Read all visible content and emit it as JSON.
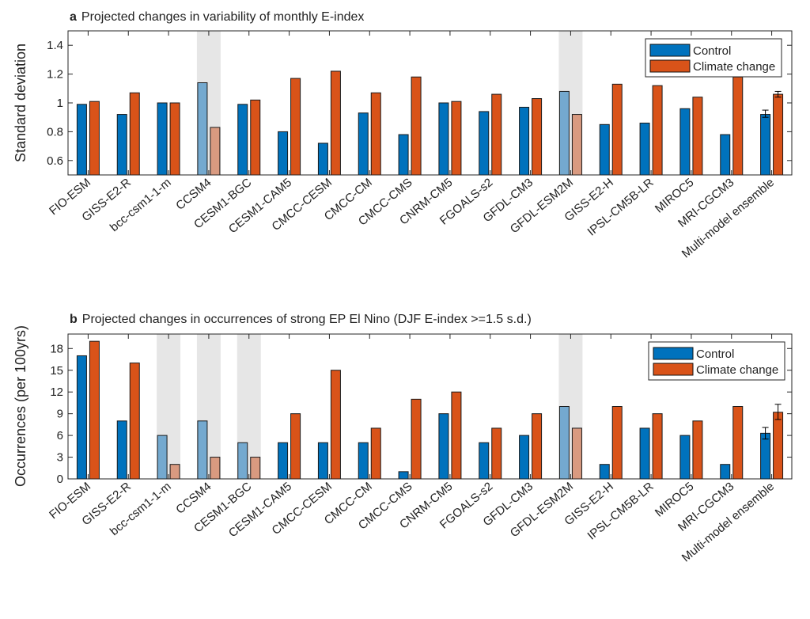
{
  "chart_data": [
    {
      "type": "bar",
      "panel_letter": "a",
      "title": "Projected changes in variability of monthly E-index",
      "ylabel": "Standard deviation",
      "xlabel": "",
      "ylim": [
        0.5,
        1.5
      ],
      "yticks": [
        0.6,
        0.8,
        1,
        1.2,
        1.4
      ],
      "ytick_labels": [
        "0.6",
        "0.8",
        "1",
        "1.2",
        "1.4"
      ],
      "categories": [
        "FIO-ESM",
        "GISS-E2-R",
        "bcc-csm1-1-m",
        "CCSM4",
        "CESM1-BGC",
        "CESM1-CAM5",
        "CMCC-CESM",
        "CMCC-CM",
        "CMCC-CMS",
        "CNRM-CM5",
        "FGOALS-s2",
        "GFDL-CM3",
        "GFDL-ESM2M",
        "GISS-E2-H",
        "IPSL-CM5B-LR",
        "MIROC5",
        "MRI-CGCM3",
        "Multi-model ensemble"
      ],
      "series": [
        {
          "name": "Control",
          "color": "#0072BD",
          "values": [
            0.99,
            0.92,
            1.0,
            1.14,
            0.99,
            0.8,
            0.72,
            0.93,
            0.78,
            1.0,
            0.94,
            0.97,
            1.08,
            0.85,
            0.86,
            0.96,
            0.78,
            0.92
          ]
        },
        {
          "name": "Climate change",
          "color": "#D95319",
          "values": [
            1.01,
            1.07,
            1.0,
            0.83,
            1.02,
            1.17,
            1.22,
            1.07,
            1.18,
            1.01,
            1.06,
            1.03,
            0.92,
            1.13,
            1.12,
            1.04,
            1.18,
            1.06
          ]
        }
      ],
      "highlighted_models": [
        "CCSM4",
        "GFDL-ESM2M"
      ],
      "error_bars": {
        "category": "Multi-model ensemble",
        "Control": [
          0.9,
          0.95
        ],
        "Climate change": [
          1.04,
          1.08
        ]
      },
      "legend_position": "top-right",
      "grid": false
    },
    {
      "type": "bar",
      "panel_letter": "b",
      "title": "Projected changes in occurrences of strong EP El Nino (DJF E-index >=1.5 s.d.)",
      "ylabel": "Occurrences (per 100yrs)",
      "xlabel": "",
      "ylim": [
        0,
        20
      ],
      "yticks": [
        0,
        3,
        6,
        9,
        12,
        15,
        18
      ],
      "ytick_labels": [
        "0",
        "3",
        "6",
        "9",
        "12",
        "15",
        "18"
      ],
      "categories": [
        "FIO-ESM",
        "GISS-E2-R",
        "bcc-csm1-1-m",
        "CCSM4",
        "CESM1-BGC",
        "CESM1-CAM5",
        "CMCC-CESM",
        "CMCC-CM",
        "CMCC-CMS",
        "CNRM-CM5",
        "FGOALS-s2",
        "GFDL-CM3",
        "GFDL-ESM2M",
        "GISS-E2-H",
        "IPSL-CM5B-LR",
        "MIROC5",
        "MRI-CGCM3",
        "Multi-model ensemble"
      ],
      "series": [
        {
          "name": "Control",
          "color": "#0072BD",
          "values": [
            17,
            8,
            6,
            8,
            5,
            5,
            5,
            5,
            1,
            9,
            5,
            6,
            10,
            2,
            7,
            6,
            2,
            6.3
          ]
        },
        {
          "name": "Climate change",
          "color": "#D95319",
          "values": [
            19,
            16,
            2,
            3,
            3,
            9,
            15,
            7,
            11,
            12,
            7,
            9,
            7,
            10,
            9,
            8,
            10,
            9.2
          ]
        }
      ],
      "highlighted_models": [
        "bcc-csm1-1-m",
        "CCSM4",
        "CESM1-BGC",
        "GFDL-ESM2M"
      ],
      "error_bars": {
        "category": "Multi-model ensemble",
        "Control": [
          5.5,
          7.1
        ],
        "Climate change": [
          8.2,
          10.3
        ]
      },
      "legend_position": "top-right",
      "grid": false
    }
  ]
}
